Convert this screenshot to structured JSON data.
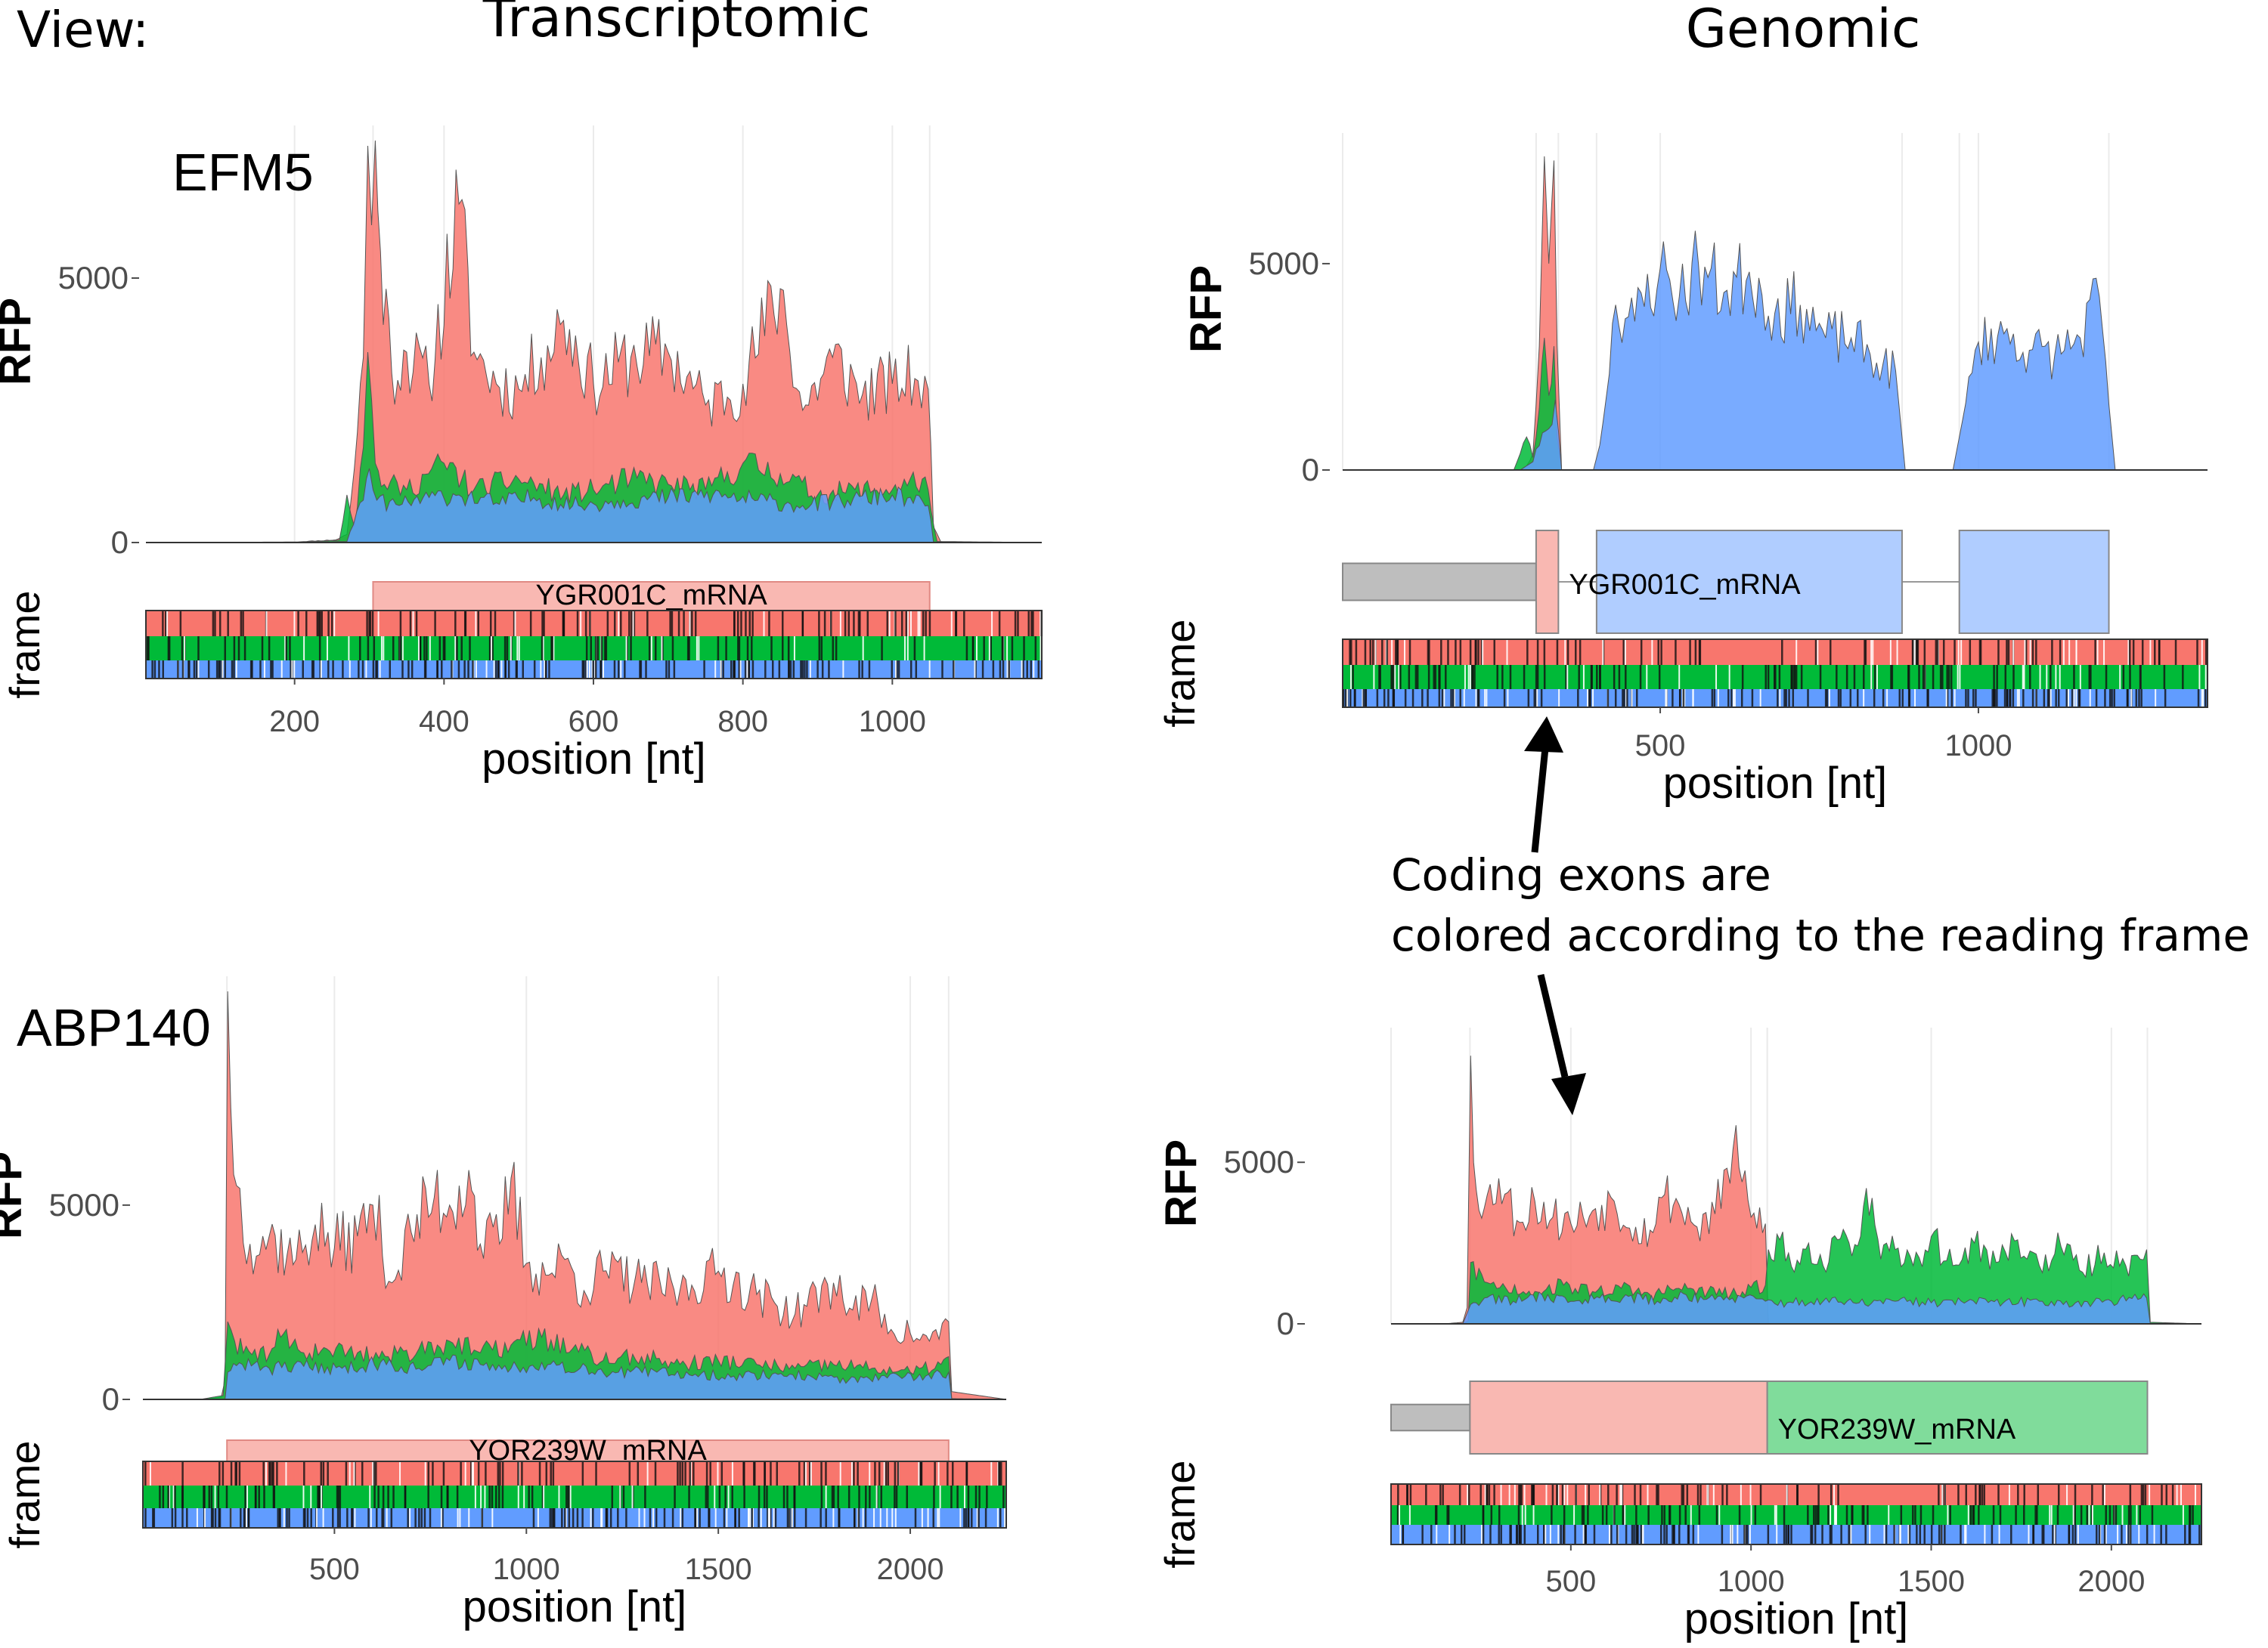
{
  "view_label": "View:",
  "column_headers": [
    "Transcriptomic",
    "Genomic"
  ],
  "annotation": {
    "line1": "Coding exons are",
    "line2": "colored according to the reading frame"
  },
  "colors": {
    "frame0": "#F8766D",
    "frame1": "#00BA38",
    "frame2": "#619CFF",
    "exon0": "#F9B8B2",
    "exon1": "#80DC9B",
    "exon2": "#B0CDFF",
    "noncoding": "#BEBEBE"
  },
  "chart_data": [
    {
      "type": "area",
      "view": "Transcriptomic",
      "gene": "EFM5",
      "transcript": "YGR001C_mRNA",
      "ylabel": "RFP",
      "xlabel": "position [nt]",
      "frame_label": "frame",
      "xlim": [
        1,
        1200
      ],
      "ylim": [
        0,
        7600
      ],
      "yticks": [
        0,
        5000
      ],
      "xticks": [
        200,
        400,
        600,
        800,
        1000
      ],
      "cds": [
        305,
        1050
      ],
      "exon_boundaries": [
        305,
        1050
      ],
      "series": [
        {
          "color_key": "frame0",
          "x": [
            1,
            200,
            255,
            270,
            280,
            292,
            298,
            303,
            308,
            315,
            330,
            350,
            380,
            420,
            440,
            470,
            500,
            530,
            560,
            600,
            650,
            700,
            750,
            800,
            850,
            880,
            920,
            960,
            1000,
            1030,
            1048,
            1055,
            1065,
            1200
          ],
          "values": [
            0,
            10,
            50,
            150,
            1400,
            3500,
            7500,
            6000,
            7600,
            5500,
            3200,
            3600,
            3000,
            6400,
            3600,
            3000,
            2900,
            3500,
            4200,
            3000,
            3500,
            3600,
            2600,
            3000,
            4800,
            2500,
            3500,
            2800,
            3000,
            3100,
            2900,
            300,
            10,
            0
          ]
        },
        {
          "color_key": "frame1",
          "x": [
            1,
            200,
            240,
            260,
            270,
            280,
            292,
            298,
            308,
            320,
            350,
            400,
            440,
            500,
            560,
            600,
            650,
            700,
            750,
            800,
            850,
            900,
            950,
            1000,
            1040,
            1048,
            1052,
            1060,
            1200
          ],
          "values": [
            0,
            5,
            30,
            50,
            900,
            300,
            1800,
            3600,
            1500,
            1100,
            1000,
            1500,
            1000,
            1200,
            900,
            1000,
            1200,
            1100,
            1000,
            1500,
            1300,
            900,
            1000,
            1000,
            1200,
            1000,
            600,
            20,
            0
          ]
        },
        {
          "color_key": "frame2",
          "x": [
            1,
            200,
            270,
            292,
            300,
            310,
            340,
            380,
            420,
            470,
            520,
            580,
            640,
            700,
            760,
            820,
            880,
            940,
            1000,
            1048,
            1055,
            1200
          ],
          "values": [
            0,
            0,
            20,
            800,
            1400,
            800,
            700,
            850,
            900,
            750,
            850,
            700,
            800,
            850,
            900,
            800,
            700,
            800,
            900,
            700,
            10,
            0
          ]
        }
      ]
    },
    {
      "type": "area",
      "view": "Genomic",
      "gene": "EFM5",
      "transcript": "YGR001C_mRNA",
      "ylabel": "RFP",
      "xlabel": "position [nt]",
      "frame_label": "frame",
      "xlim": [
        1,
        1360
      ],
      "ylim": [
        0,
        7800
      ],
      "yticks": [
        0,
        5000
      ],
      "xticks": [
        500,
        1000
      ],
      "exons": [
        [
          1,
          305,
          "noncoding"
        ],
        [
          305,
          340,
          "frame0"
        ],
        [
          400,
          880,
          "frame2"
        ],
        [
          970,
          1205,
          "frame2"
        ]
      ],
      "series": [
        {
          "color_key": "frame0",
          "x": [
            1,
            280,
            290,
            300,
            310,
            318,
            325,
            333,
            338,
            345,
            1360
          ],
          "values": [
            0,
            0,
            100,
            400,
            3000,
            7600,
            5000,
            7500,
            3000,
            10,
            0
          ]
        },
        {
          "color_key": "frame1",
          "x": [
            1,
            270,
            280,
            290,
            300,
            310,
            318,
            325,
            333,
            338,
            345,
            1360
          ],
          "values": [
            0,
            0,
            400,
            800,
            300,
            1500,
            3200,
            1800,
            3000,
            800,
            10,
            0
          ]
        },
        {
          "color_key": "frame2",
          "x": [
            1,
            280,
            300,
            315,
            325,
            335,
            345,
            395,
            405,
            430,
            460,
            500,
            530,
            560,
            600,
            640,
            680,
            720,
            760,
            800,
            840,
            870,
            885,
            960,
            975,
            1000,
            1040,
            1080,
            1120,
            1160,
            1190,
            1205,
            1215,
            1360
          ],
          "values": [
            0,
            0,
            200,
            900,
            1000,
            1700,
            10,
            0,
            600,
            4000,
            3600,
            4900,
            4200,
            5000,
            4300,
            4800,
            3800,
            4000,
            3200,
            3200,
            2600,
            2400,
            0,
            0,
            1200,
            3100,
            3300,
            2900,
            2800,
            3200,
            4200,
            1600,
            0,
            0
          ]
        }
      ]
    },
    {
      "type": "area",
      "view": "Transcriptomic",
      "gene": "ABP140",
      "transcript": "YOR239W_mRNA",
      "ylabel": "RFP",
      "xlabel": "position [nt]",
      "frame_label": "frame",
      "xlim": [
        1,
        2250
      ],
      "ylim": [
        0,
        10500
      ],
      "yticks": [
        0,
        5000
      ],
      "xticks": [
        500,
        1000,
        1500,
        2000
      ],
      "cds": [
        220,
        2100
      ],
      "exon_boundaries": [
        220,
        2100
      ],
      "series": [
        {
          "color_key": "frame0",
          "x": [
            1,
            150,
            205,
            215,
            222,
            230,
            245,
            280,
            330,
            400,
            450,
            500,
            560,
            600,
            650,
            700,
            760,
            800,
            850,
            880,
            930,
            960,
            1000,
            1050,
            1100,
            1150,
            1200,
            1300,
            1400,
            1500,
            1600,
            1700,
            1800,
            1850,
            1900,
            1950,
            2000,
            2050,
            2100,
            2108,
            2250
          ],
          "values": [
            0,
            0,
            50,
            500,
            10500,
            7500,
            5500,
            4000,
            4200,
            3600,
            4500,
            3900,
            4200,
            5000,
            3000,
            4300,
            5200,
            5000,
            5900,
            4000,
            4000,
            5700,
            3500,
            3200,
            3600,
            2800,
            3300,
            3000,
            2800,
            3300,
            2700,
            2200,
            3000,
            2300,
            2600,
            1800,
            1700,
            1500,
            2000,
            200,
            0
          ]
        },
        {
          "color_key": "frame1",
          "x": [
            1,
            150,
            210,
            222,
            240,
            300,
            360,
            420,
            480,
            560,
            640,
            720,
            800,
            880,
            960,
            1040,
            1120,
            1200,
            1300,
            1400,
            1500,
            1600,
            1700,
            1800,
            1900,
            2000,
            2080,
            2100,
            2108,
            2250
          ],
          "values": [
            0,
            0,
            100,
            2000,
            1500,
            1000,
            1600,
            1200,
            1300,
            1200,
            1100,
            1300,
            1500,
            1200,
            1400,
            1600,
            1300,
            1000,
            1100,
            900,
            1000,
            900,
            800,
            900,
            800,
            700,
            900,
            1100,
            20,
            0
          ]
        },
        {
          "color_key": "frame2",
          "x": [
            1,
            150,
            215,
            222,
            260,
            330,
            420,
            520,
            620,
            720,
            800,
            880,
            960,
            1040,
            1140,
            1240,
            1340,
            1440,
            1540,
            1640,
            1740,
            1840,
            1940,
            2040,
            2100,
            2108,
            2250
          ],
          "values": [
            0,
            0,
            0,
            700,
            900,
            800,
            850,
            800,
            950,
            800,
            1000,
            900,
            800,
            950,
            800,
            700,
            700,
            650,
            600,
            650,
            600,
            500,
            550,
            600,
            700,
            10,
            0
          ]
        }
      ]
    },
    {
      "type": "area",
      "view": "Genomic",
      "gene": "ABP140",
      "transcript": "YOR239W_mRNA",
      "ylabel": "RFP",
      "xlabel": "position [nt]",
      "frame_label": "frame",
      "xlim": [
        1,
        2250
      ],
      "ylim": [
        0,
        8700
      ],
      "yticks": [
        0,
        5000
      ],
      "xticks": [
        500,
        1000,
        1500,
        2000
      ],
      "exons": [
        [
          1,
          220,
          "noncoding"
        ],
        [
          220,
          1045,
          "frame0"
        ],
        [
          1045,
          2100,
          "frame1"
        ]
      ],
      "series": [
        {
          "color_key": "frame0",
          "x": [
            1,
            150,
            200,
            212,
            222,
            230,
            260,
            300,
            350,
            400,
            450,
            500,
            560,
            620,
            680,
            720,
            760,
            800,
            850,
            900,
            950,
            1000,
            1040,
            1048,
            2250
          ],
          "values": [
            0,
            0,
            50,
            500,
            8300,
            5000,
            3600,
            4500,
            3200,
            3800,
            3300,
            3100,
            3500,
            3800,
            3000,
            2900,
            4000,
            3700,
            3000,
            3400,
            5400,
            3300,
            3100,
            0,
            0
          ]
        },
        {
          "color_key": "frame1",
          "x": [
            1,
            200,
            215,
            222,
            260,
            320,
            400,
            480,
            560,
            640,
            720,
            800,
            880,
            960,
            1040,
            1048,
            1080,
            1120,
            1160,
            1200,
            1240,
            1280,
            1320,
            1360,
            1400,
            1450,
            1500,
            1560,
            1620,
            1680,
            1740,
            1800,
            1860,
            1920,
            1980,
            2040,
            2080,
            2098,
            2108,
            2250
          ],
          "values": [
            0,
            0,
            100,
            1900,
            1300,
            1100,
            1000,
            1200,
            1000,
            1100,
            900,
            1100,
            1000,
            900,
            1200,
            2300,
            2600,
            1600,
            2500,
            1800,
            2600,
            2100,
            4200,
            2000,
            2300,
            1800,
            2700,
            1800,
            2500,
            1900,
            2600,
            1800,
            2400,
            1600,
            2200,
            1800,
            2000,
            2300,
            50,
            0
          ]
        },
        {
          "color_key": "frame2",
          "x": [
            1,
            200,
            222,
            260,
            340,
            420,
            500,
            580,
            660,
            740,
            820,
            900,
            980,
            1040,
            1100,
            1200,
            1300,
            1400,
            1500,
            1600,
            1700,
            1800,
            1900,
            2000,
            2098,
            2108,
            2250
          ],
          "values": [
            0,
            0,
            600,
            800,
            700,
            900,
            700,
            800,
            850,
            700,
            900,
            750,
            800,
            700,
            650,
            700,
            650,
            700,
            650,
            700,
            650,
            700,
            650,
            700,
            800,
            10,
            0
          ]
        }
      ]
    }
  ]
}
